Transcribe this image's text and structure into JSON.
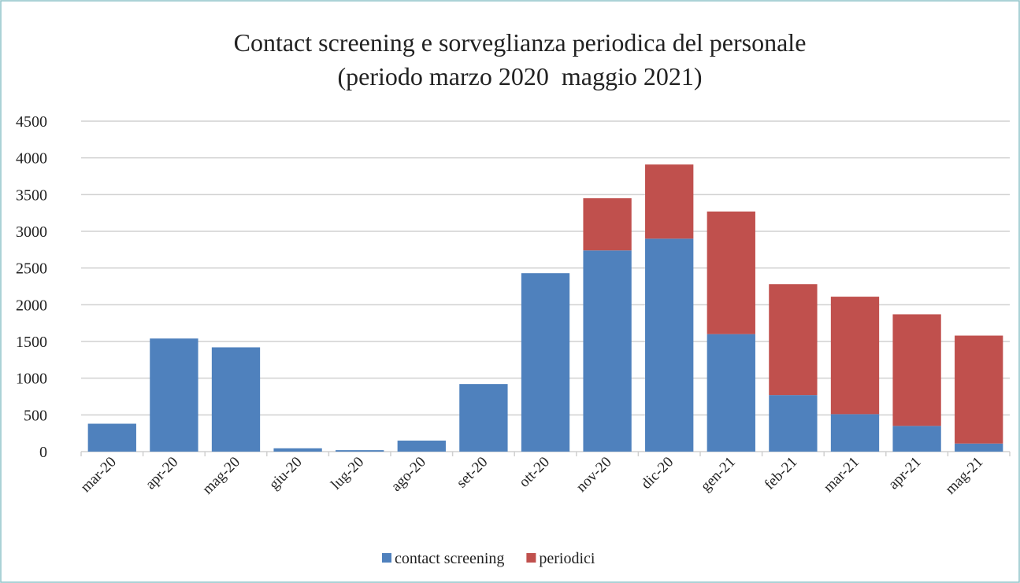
{
  "chart_data": {
    "type": "stacked-bar",
    "title": "Contact screening e sorveglianza periodica del personale",
    "subtitle": "(periodo marzo 2020  maggio 2021)",
    "categories": [
      "mar-20",
      "apr-20",
      "mag-20",
      "giu-20",
      "lug-20",
      "ago-20",
      "set-20",
      "ott-20",
      "nov-20",
      "dic-20",
      "gen-21",
      "feb-21",
      "mar-21",
      "apr-21",
      "mag-21"
    ],
    "series": [
      {
        "name": "contact screening",
        "color": "#4f81bd",
        "values": [
          380,
          1540,
          1420,
          45,
          20,
          150,
          920,
          2430,
          2740,
          2900,
          1600,
          770,
          510,
          350,
          110
        ]
      },
      {
        "name": "periodici",
        "color": "#c0504d",
        "values": [
          0,
          0,
          0,
          0,
          0,
          0,
          0,
          0,
          710,
          1010,
          1670,
          1510,
          1600,
          1520,
          1470
        ]
      }
    ],
    "ylim": [
      0,
      4500
    ],
    "yticks": [
      0,
      500,
      1000,
      1500,
      2000,
      2500,
      3000,
      3500,
      4000,
      4500
    ],
    "grid": true,
    "legend": "bottom"
  }
}
